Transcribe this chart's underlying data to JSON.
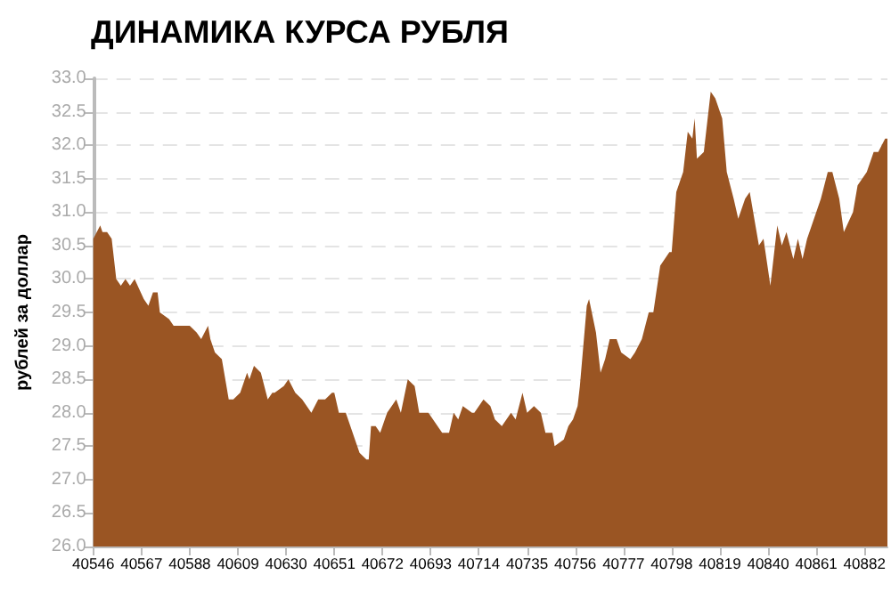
{
  "chart_data": {
    "type": "area",
    "title": "ДИНАМИКА КУРСА РУБЛЯ",
    "ylabel": "рублей за доллар",
    "grid": "y",
    "xlim": [
      40546,
      40892
    ],
    "xticks": [
      40546,
      40567,
      40588,
      40609,
      40630,
      40651,
      40672,
      40693,
      40714,
      40735,
      40756,
      40777,
      40798,
      40819,
      40840,
      40861,
      40882
    ],
    "ylim": [
      26,
      33
    ],
    "yticks": [
      {
        "value": 26,
        "label": "26.0"
      },
      {
        "value": 26.5,
        "label": "26.5"
      },
      {
        "value": 27,
        "label": "27.0"
      },
      {
        "value": 27.5,
        "label": "27.5"
      },
      {
        "value": 28,
        "label": "28.0"
      },
      {
        "value": 28.5,
        "label": "28.5"
      },
      {
        "value": 29,
        "label": "29.0"
      },
      {
        "value": 29.5,
        "label": "29.5"
      },
      {
        "value": 30,
        "label": "30.0"
      },
      {
        "value": 30.5,
        "label": "30.5"
      },
      {
        "value": 31,
        "label": "31.0"
      },
      {
        "value": 31.5,
        "label": "31.5"
      },
      {
        "value": 32,
        "label": "32.0"
      },
      {
        "value": 32.5,
        "label": "32.5"
      },
      {
        "value": 33,
        "label": "33.0"
      }
    ],
    "series": [
      {
        "color": "#9a5523",
        "x": [
          40546,
          40549,
          40550,
          40552,
          40554,
          40556,
          40558,
          40560,
          40562,
          40564,
          40568,
          40570,
          40572,
          40574,
          40575,
          40579,
          40581,
          40584,
          40588,
          40591,
          40593,
          40596,
          40597,
          40599,
          40602,
          40605,
          40607,
          40610,
          40613,
          40614,
          40616,
          40619,
          40622,
          40624,
          40625,
          40629,
          40631,
          40634,
          40637,
          40639,
          40641,
          40644,
          40647,
          40650,
          40651,
          40653,
          40656,
          40660,
          40662,
          40665,
          40666,
          40667,
          40669,
          40671,
          40674,
          40676,
          40678,
          40680,
          40683,
          40686,
          40688,
          40692,
          40696,
          40698,
          40701,
          40703,
          40705,
          40707,
          40711,
          40712,
          40716,
          40719,
          40721,
          40724,
          40728,
          40730,
          40733,
          40735,
          40738,
          40741,
          40743,
          40746,
          40747,
          40751,
          40753,
          40755,
          40757,
          40758,
          40761,
          40762,
          40765,
          40767,
          40769,
          40771,
          40774,
          40776,
          40780,
          40782,
          40785,
          40788,
          40790,
          40793,
          40797,
          40798,
          40800,
          40803,
          40805,
          40807,
          40808,
          40809,
          40812,
          40815,
          40817,
          40820,
          40822,
          40825,
          40827,
          40830,
          40832,
          40836,
          40838,
          40841,
          40844,
          40846,
          40848,
          40851,
          40853,
          40855,
          40857,
          40860,
          40863,
          40866,
          40868,
          40871,
          40873,
          40877,
          40879,
          40881,
          40883,
          40886,
          40888,
          40891,
          40892
        ],
        "values": [
          30.6,
          30.8,
          30.7,
          30.7,
          30.6,
          30.0,
          29.9,
          30.0,
          29.9,
          30.0,
          29.7,
          29.6,
          29.8,
          29.8,
          29.5,
          29.4,
          29.3,
          29.3,
          29.3,
          29.2,
          29.1,
          29.3,
          29.1,
          28.9,
          28.8,
          28.2,
          28.2,
          28.3,
          28.6,
          28.5,
          28.7,
          28.6,
          28.2,
          28.3,
          28.3,
          28.4,
          28.5,
          28.3,
          28.2,
          28.1,
          28.0,
          28.2,
          28.2,
          28.3,
          28.3,
          28.0,
          28.0,
          27.6,
          27.4,
          27.3,
          27.3,
          27.8,
          27.8,
          27.7,
          28.0,
          28.1,
          28.2,
          28.0,
          28.5,
          28.4,
          28.0,
          28.0,
          27.8,
          27.7,
          27.7,
          28.0,
          27.9,
          28.1,
          28.0,
          28.0,
          28.2,
          28.1,
          27.9,
          27.8,
          28.0,
          27.9,
          28.3,
          28.0,
          28.1,
          28.0,
          27.7,
          27.7,
          27.5,
          27.6,
          27.8,
          27.9,
          28.1,
          28.4,
          29.6,
          29.7,
          29.2,
          28.6,
          28.8,
          29.1,
          29.1,
          28.9,
          28.8,
          28.9,
          29.1,
          29.5,
          29.5,
          30.2,
          30.4,
          30.4,
          31.3,
          31.6,
          32.2,
          32.1,
          32.4,
          31.8,
          31.9,
          32.8,
          32.7,
          32.4,
          31.6,
          31.2,
          30.9,
          31.2,
          31.3,
          30.5,
          30.6,
          29.9,
          30.8,
          30.5,
          30.7,
          30.3,
          30.6,
          30.3,
          30.6,
          30.9,
          31.2,
          31.6,
          31.6,
          31.2,
          30.7,
          31.0,
          31.4,
          31.5,
          31.6,
          31.9,
          31.9,
          32.1,
          32.1
        ]
      }
    ]
  }
}
